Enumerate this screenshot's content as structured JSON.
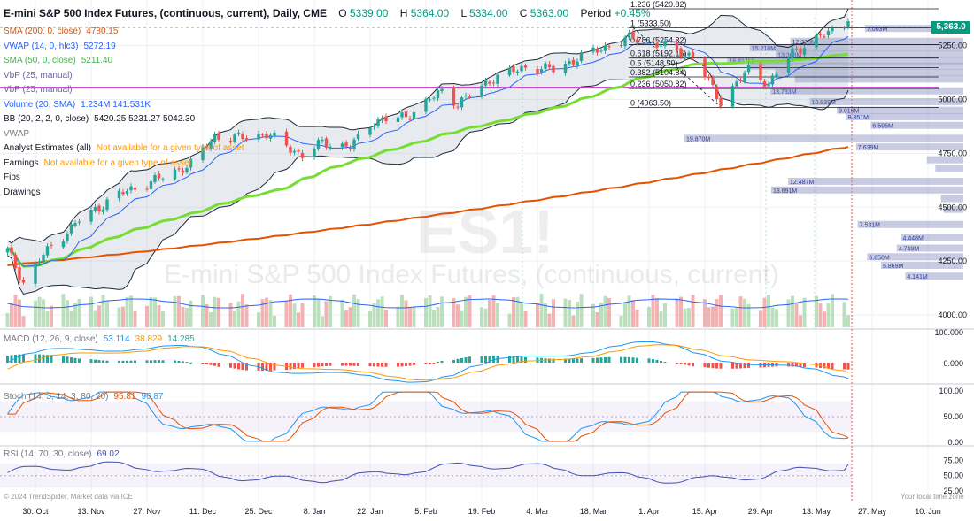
{
  "header": {
    "symbol": "E-mini S&P 500 Index Futures, (continuous, current), Daily, CME",
    "open_label": "O",
    "open": "5339.00",
    "high_label": "H",
    "high": "5364.00",
    "low_label": "L",
    "low": "5334.00",
    "close_label": "C",
    "close": "5363.00",
    "period_label": "Period",
    "period": "+0.45%"
  },
  "price_tag": "5,363.0",
  "watermark": {
    "ticker": "ES1!",
    "name": "E-mini S&P 500 Index Futures, (continuous, current)"
  },
  "legend": [
    {
      "label": "SMA (200, 0, close)",
      "value": "4780.15",
      "color": "#e65100"
    },
    {
      "label": "VWAP (14, 0, hlc3)",
      "value": "5272.19",
      "color": "#2962ff"
    },
    {
      "label": "SMA (50, 0, close)",
      "value": "5211.40",
      "color": "#4caf50"
    },
    {
      "label": "VbP (25, manual)",
      "value": "",
      "color": "#6b5fa6"
    },
    {
      "label": "VbP (25, manual)",
      "value": "",
      "color": "#6b5fa6"
    },
    {
      "label": "Volume (20, SMA)",
      "value": "1.234M  141.531K",
      "color": "#2962ff"
    },
    {
      "label": "BB (20, 2, 2, 0, close)",
      "value": "5420.25  5231.27  5042.30",
      "color": "#131722"
    },
    {
      "label": "VWAP",
      "value": "",
      "color": "#787b86"
    },
    {
      "label": "Analyst Estimates (all)",
      "value": "Not available for a given type of asset",
      "color": "#131722",
      "value_color": "#ff9800"
    },
    {
      "label": "Earnings",
      "value": "Not available for a given type of asset",
      "color": "#131722",
      "value_color": "#ff9800"
    },
    {
      "label": "Fibs",
      "value": "",
      "color": "#131722"
    },
    {
      "label": "Drawings",
      "value": "",
      "color": "#131722"
    }
  ],
  "panes": {
    "macd": {
      "label": "MACD (12, 26, 9, close)",
      "values": [
        "53.114",
        "38.829",
        "14.285"
      ],
      "colors": [
        "#2196f3",
        "#ff9800",
        "#26a69a"
      ]
    },
    "stoch": {
      "label": "Stoch (14, 3, 14, 3, 80, 20)",
      "values": [
        "95.81",
        "96.87"
      ],
      "colors": [
        "#e65100",
        "#2196f3"
      ]
    },
    "rsi": {
      "label": "RSI (14, 70, 30, close)",
      "values": [
        "69.02"
      ],
      "colors": [
        "#3f51b5"
      ]
    }
  },
  "footer": {
    "credit": "© 2024 TrendSpider. Market data via ICE",
    "local_time": "Your local time zone"
  },
  "colors": {
    "up": "#26a69a",
    "down": "#ef5350",
    "sma200": "#e65100",
    "sma50": "#77dd33",
    "vwap": "#2962ff",
    "bb": "#1e2a3a",
    "magenta": "#cc33cc",
    "vbp": "#9aa0c8"
  },
  "chart_data": {
    "type": "candlestick",
    "title": "E-mini S&P 500 Index Futures, (continuous, current), Daily, CME",
    "x_ticks": [
      "30. Oct",
      "13. Nov",
      "27. Nov",
      "11. Dec",
      "25. Dec",
      "8. Jan",
      "22. Jan",
      "5. Feb",
      "19. Feb",
      "4. Mar",
      "18. Mar",
      "1. Apr",
      "15. Apr",
      "29. Apr",
      "13. May",
      "27. May",
      "10. Jun"
    ],
    "price_axis": {
      "ticks": [
        "5250.00",
        "5000.00",
        "4750.00",
        "4500.00",
        "4250.00",
        "4000.00"
      ],
      "range": [
        3980,
        5440
      ]
    },
    "macd_axis": {
      "ticks": [
        "100.000",
        "0.000"
      ]
    },
    "stoch_axis": {
      "ticks": [
        "100.00",
        "50.00",
        "0.00"
      ],
      "bands": [
        80,
        20
      ]
    },
    "rsi_axis": {
      "ticks": [
        "75.00",
        "50.00",
        "25.00"
      ],
      "bands": [
        70,
        30
      ]
    },
    "price_anchors": [
      [
        "2023-10-23",
        4300
      ],
      [
        "2023-10-27",
        4150
      ],
      [
        "2023-11-01",
        4280
      ],
      [
        "2023-11-10",
        4440
      ],
      [
        "2023-11-20",
        4560
      ],
      [
        "2023-12-01",
        4640
      ],
      [
        "2023-12-08",
        4700
      ],
      [
        "2023-12-14",
        4830
      ],
      [
        "2023-12-19",
        4820
      ],
      [
        "2023-12-27",
        4840
      ],
      [
        "2024-01-05",
        4740
      ],
      [
        "2024-01-10",
        4800
      ],
      [
        "2024-01-17",
        4780
      ],
      [
        "2024-01-23",
        4900
      ],
      [
        "2024-01-31",
        4920
      ],
      [
        "2024-02-09",
        5040
      ],
      [
        "2024-02-13",
        4980
      ],
      [
        "2024-02-22",
        5100
      ],
      [
        "2024-03-01",
        5150
      ],
      [
        "2024-03-08",
        5140
      ],
      [
        "2024-03-19",
        5230
      ],
      [
        "2024-03-28",
        5290
      ],
      [
        "2024-04-04",
        5250
      ],
      [
        "2024-04-12",
        5200
      ],
      [
        "2024-04-19",
        4990
      ],
      [
        "2024-04-26",
        5140
      ],
      [
        "2024-05-01",
        5070
      ],
      [
        "2024-05-07",
        5220
      ],
      [
        "2024-05-14",
        5290
      ],
      [
        "2024-05-21",
        5363
      ]
    ],
    "sma200_range": [
      4230,
      4780.15
    ],
    "sma50_last": 5211.4,
    "bb_last": {
      "upper": 5420.25,
      "basis": 5231.27,
      "lower": 5042.3
    },
    "vwap_last": 5272.19,
    "horizontal_level": 5055,
    "fib_levels": [
      {
        "ratio": "1.236",
        "price": "5420.82"
      },
      {
        "ratio": "1",
        "price": "5333.50"
      },
      {
        "ratio": "0.786",
        "price": "5254.32"
      },
      {
        "ratio": "0.618",
        "price": "5192.16"
      },
      {
        "ratio": "0.5",
        "price": "5148.50"
      },
      {
        "ratio": "0.382",
        "price": "5104.84"
      },
      {
        "ratio": "0.236",
        "price": "5050.82"
      },
      {
        "ratio": "0",
        "price": "4963.50"
      }
    ],
    "vbp_bars": [
      {
        "price": 5330,
        "value": 7.003,
        "label": "7.003M"
      },
      {
        "price": 5270,
        "value": 12.328,
        "label": "12.328M"
      },
      {
        "price": 5240,
        "value": 15.218,
        "label": "15.218M"
      },
      {
        "price": 5210,
        "value": 13.368,
        "label": "13.368M"
      },
      {
        "price": 5180,
        "value": 16.814,
        "label": "16.814M"
      },
      {
        "price": 5155,
        "value": 15.2,
        "label": ""
      },
      {
        "price": 5125,
        "value": 13.4,
        "label": ""
      },
      {
        "price": 5095,
        "value": 12.0,
        "label": ""
      },
      {
        "price": 5040,
        "value": 13.733,
        "label": "13.733M"
      },
      {
        "price": 4990,
        "value": 10.939,
        "label": "10.939M"
      },
      {
        "price": 4950,
        "value": 9.016,
        "label": "9.016M"
      },
      {
        "price": 4920,
        "value": 8.351,
        "label": "8.351M"
      },
      {
        "price": 4880,
        "value": 6.596,
        "label": "6.596M"
      },
      {
        "price": 4820,
        "value": 19.87,
        "label": "19.870M"
      },
      {
        "price": 4780,
        "value": 7.639,
        "label": "7.639M"
      },
      {
        "price": 4720,
        "value": 2.6,
        "label": ""
      },
      {
        "price": 4680,
        "value": 2.0,
        "label": ""
      },
      {
        "price": 4620,
        "value": 12.487,
        "label": "12.487M"
      },
      {
        "price": 4580,
        "value": 13.691,
        "label": "13.691M"
      },
      {
        "price": 4540,
        "value": 1.6,
        "label": ""
      },
      {
        "price": 4490,
        "value": 1.4,
        "label": ""
      },
      {
        "price": 4420,
        "value": 7.531,
        "label": "7.531M"
      },
      {
        "price": 4360,
        "value": 4.448,
        "label": "4.448M"
      },
      {
        "price": 4310,
        "value": 4.749,
        "label": "4.749M"
      },
      {
        "price": 4270,
        "value": 6.85,
        "label": "6.850M"
      },
      {
        "price": 4230,
        "value": 5.869,
        "label": "5.869M"
      },
      {
        "price": 4180,
        "value": 4.141,
        "label": "4.141M"
      }
    ]
  }
}
